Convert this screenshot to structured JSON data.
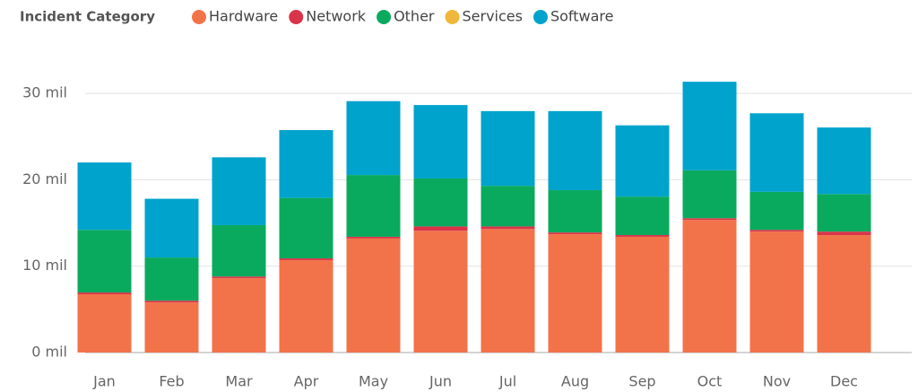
{
  "chart_data": {
    "type": "stacked_bar",
    "legend_title": "Incident Category",
    "categories": [
      "Jan",
      "Feb",
      "Mar",
      "Apr",
      "May",
      "Jun",
      "Jul",
      "Aug",
      "Sep",
      "Oct",
      "Nov",
      "Dec"
    ],
    "series": [
      {
        "name": "Hardware",
        "color": "#f2734a",
        "values": [
          6.75,
          5.8,
          8.6,
          10.7,
          13.2,
          14.1,
          14.3,
          13.7,
          13.4,
          15.35,
          14.0,
          13.6
        ]
      },
      {
        "name": "Network",
        "color": "#d9344a",
        "values": [
          0.2,
          0.2,
          0.2,
          0.2,
          0.2,
          0.5,
          0.3,
          0.2,
          0.2,
          0.2,
          0.2,
          0.4
        ]
      },
      {
        "name": "Other",
        "color": "#0aaa5e",
        "values": [
          7.25,
          5.0,
          5.95,
          7.0,
          7.15,
          5.55,
          4.7,
          4.9,
          4.45,
          5.55,
          4.4,
          4.35
        ]
      },
      {
        "name": "Services",
        "color": "#f0b83a",
        "values": [
          0,
          0,
          0,
          0,
          0,
          0,
          0,
          0,
          0,
          0,
          0,
          0
        ]
      },
      {
        "name": "Software",
        "color": "#00a3cc",
        "values": [
          7.8,
          6.8,
          7.85,
          7.85,
          8.55,
          8.5,
          8.65,
          9.15,
          8.25,
          10.25,
          9.1,
          7.7
        ]
      }
    ],
    "ylim": [
      0,
      32
    ],
    "yticks": [
      {
        "value": 0,
        "label": "0 mil"
      },
      {
        "value": 10,
        "label": "10 mil"
      },
      {
        "value": 20,
        "label": "20 mil"
      },
      {
        "value": 30,
        "label": "30 mil"
      }
    ],
    "grid": true
  }
}
